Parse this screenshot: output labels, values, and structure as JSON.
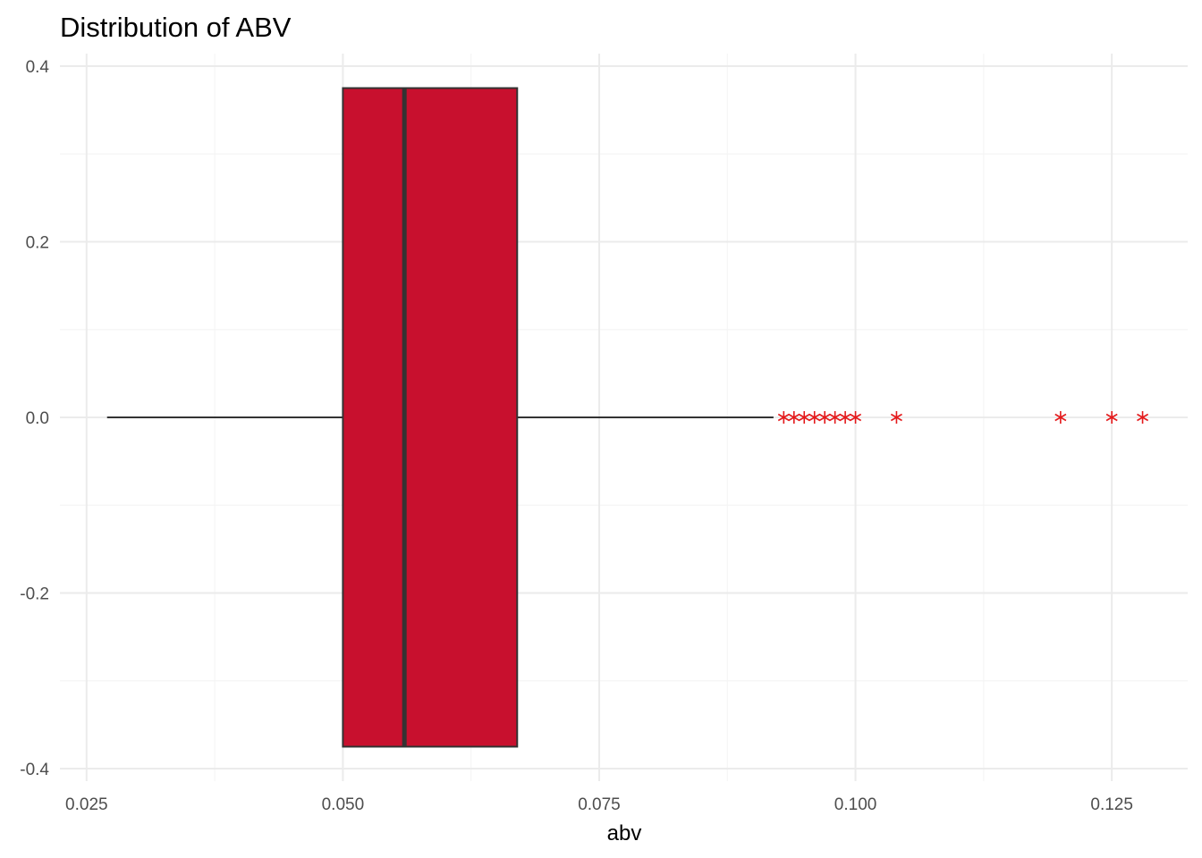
{
  "chart_data": {
    "type": "boxplot",
    "title": "Distribution of ABV",
    "xlabel": "abv",
    "ylabel": "",
    "xlim": [
      0.0224,
      0.1324
    ],
    "ylim": [
      -0.4,
      0.4
    ],
    "x_ticks": [
      {
        "value": 0.025,
        "label": "0.025"
      },
      {
        "value": 0.05,
        "label": "0.050"
      },
      {
        "value": 0.075,
        "label": "0.075"
      },
      {
        "value": 0.1,
        "label": "0.100"
      },
      {
        "value": 0.125,
        "label": "0.125"
      }
    ],
    "x_minor_ticks": [
      0.0375,
      0.0625,
      0.0875,
      0.1125
    ],
    "y_ticks": [
      {
        "value": 0.4,
        "label": "0.4"
      },
      {
        "value": 0.2,
        "label": "0.2"
      },
      {
        "value": 0.0,
        "label": "0.0"
      },
      {
        "value": -0.2,
        "label": "-0.2"
      },
      {
        "value": -0.4,
        "label": "-0.4"
      }
    ],
    "y_minor_ticks": [
      0.3,
      0.1,
      -0.1,
      -0.3
    ],
    "box": {
      "whisker_low": 0.027,
      "q1": 0.05,
      "median": 0.056,
      "q3": 0.067,
      "whisker_high": 0.092,
      "y_center": 0.0,
      "half_height": 0.375
    },
    "outliers": [
      0.093,
      0.094,
      0.095,
      0.096,
      0.097,
      0.098,
      0.099,
      0.1,
      0.104,
      0.12,
      0.125,
      0.128
    ],
    "grid": true,
    "colors": {
      "box_fill": "#C8102E",
      "box_outline": "#333333",
      "median": "#333333",
      "whisker": "#333333",
      "outlier": "#E41A1C",
      "grid_major": "#EBEBEB",
      "grid_minor": "#F5F5F5"
    }
  }
}
